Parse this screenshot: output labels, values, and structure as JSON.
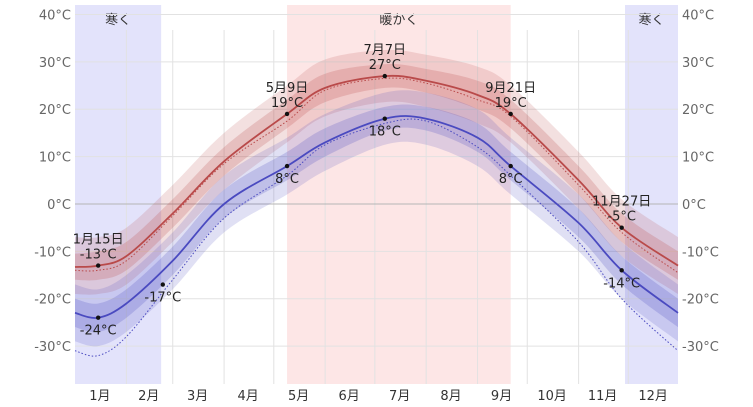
{
  "chart_data": {
    "type": "line",
    "title": "",
    "xlabel": "",
    "ylabel": "",
    "x_unit": "day_of_year",
    "xlim": [
      1,
      365
    ],
    "ylim": [
      -38,
      42
    ],
    "yticks": [
      -30,
      -20,
      -10,
      0,
      10,
      20,
      30,
      40
    ],
    "ytick_labels": [
      "-30°C",
      "-20°C",
      "-10°C",
      "0°C",
      "10°C",
      "20°C",
      "30°C",
      "40°C"
    ],
    "months": [
      {
        "label": "1月",
        "start": 1,
        "end": 31
      },
      {
        "label": "2月",
        "start": 32,
        "end": 59
      },
      {
        "label": "3月",
        "start": 60,
        "end": 90
      },
      {
        "label": "4月",
        "start": 91,
        "end": 120
      },
      {
        "label": "5月",
        "start": 121,
        "end": 151
      },
      {
        "label": "6月",
        "start": 152,
        "end": 181
      },
      {
        "label": "7月",
        "start": 182,
        "end": 212
      },
      {
        "label": "8月",
        "start": 213,
        "end": 243
      },
      {
        "label": "9月",
        "start": 244,
        "end": 273
      },
      {
        "label": "10月",
        "start": 274,
        "end": 304
      },
      {
        "label": "11月",
        "start": 305,
        "end": 334
      },
      {
        "label": "12月",
        "start": 335,
        "end": 365
      }
    ],
    "seasons": [
      {
        "label": "寒く",
        "start": 1,
        "end": 53,
        "color": "#e3e3fb"
      },
      {
        "label": "暖かく",
        "start": 129,
        "end": 264,
        "color": "#fde6e6"
      },
      {
        "label": "寒く",
        "start": 333,
        "end": 365,
        "color": "#e3e3fb"
      }
    ],
    "x": [
      1,
      15,
      32,
      60,
      91,
      129,
      152,
      188,
      213,
      244,
      264,
      305,
      331,
      365
    ],
    "series": [
      {
        "color": "#b94a4a",
        "values": [
          -13.3,
          -13,
          -11,
          -2,
          9,
          19,
          24.5,
          27,
          26,
          23,
          19,
          5,
          -5,
          -13
        ],
        "band_inner": [
          [
            -16,
            -10.5
          ],
          [
            -16,
            -10
          ],
          [
            -14,
            -8
          ],
          [
            -5,
            1
          ],
          [
            6,
            12
          ],
          [
            16,
            22
          ],
          [
            21.5,
            27.5
          ],
          [
            24.5,
            29.5
          ],
          [
            23.5,
            28.5
          ],
          [
            20,
            26
          ],
          [
            16,
            22
          ],
          [
            2,
            8
          ],
          [
            -8,
            -2
          ],
          [
            -16,
            -10
          ]
        ],
        "band_outer": [
          [
            -19,
            -7
          ],
          [
            -19,
            -7
          ],
          [
            -17,
            -5
          ],
          [
            -8,
            4
          ],
          [
            3,
            15
          ],
          [
            13,
            25
          ],
          [
            18.5,
            30.5
          ],
          [
            21.5,
            32.5
          ],
          [
            20.5,
            31.5
          ],
          [
            17,
            29
          ],
          [
            13,
            25
          ],
          [
            -1,
            11
          ],
          [
            -11,
            1
          ],
          [
            -19,
            -7
          ]
        ],
        "avg_dotted": [
          -14,
          -14,
          -12,
          -2.5,
          8.5,
          17.5,
          24,
          26.5,
          25.5,
          22,
          18.5,
          4,
          -6,
          -14.5
        ]
      },
      {
        "color": "#4a4ac0",
        "values": [
          -23,
          -24,
          -21,
          -12,
          0,
          8,
          13,
          18,
          18,
          14,
          8,
          -4,
          -14,
          -23
        ],
        "band_inner": [
          [
            -26,
            -20
          ],
          [
            -27,
            -21
          ],
          [
            -24,
            -18
          ],
          [
            -15,
            -9
          ],
          [
            -3,
            3
          ],
          [
            5,
            11
          ],
          [
            10,
            16
          ],
          [
            15.5,
            20.5
          ],
          [
            15.5,
            20.5
          ],
          [
            11,
            17
          ],
          [
            5,
            11
          ],
          [
            -7,
            -1
          ],
          [
            -17,
            -11
          ],
          [
            -26,
            -20
          ]
        ],
        "band_outer": [
          [
            -29,
            -17
          ],
          [
            -30,
            -18
          ],
          [
            -27,
            -15
          ],
          [
            -18,
            -6
          ],
          [
            -6,
            6
          ],
          [
            2,
            14
          ],
          [
            7,
            19
          ],
          [
            12.5,
            23.5
          ],
          [
            12.5,
            23.5
          ],
          [
            8,
            20
          ],
          [
            2,
            14
          ],
          [
            -10,
            2
          ],
          [
            -20,
            -8
          ],
          [
            -29,
            -17
          ]
        ],
        "avg_dotted": [
          -31,
          -32,
          -28,
          -16,
          -3,
          6,
          12.5,
          17,
          17.5,
          12,
          6,
          -8,
          -20,
          -31
        ]
      }
    ],
    "annotations": [
      {
        "day": 15,
        "value": -13,
        "date": "1月15日",
        "label": "-13°C",
        "position": "above"
      },
      {
        "day": 15,
        "value": -24,
        "date": "",
        "label": "-24°C",
        "position": "below"
      },
      {
        "day": 54,
        "value": -17,
        "date": "",
        "label": "-17°C",
        "position": "below"
      },
      {
        "day": 129,
        "value": 19,
        "date": "5月9日",
        "label": "19°C",
        "position": "above"
      },
      {
        "day": 129,
        "value": 8,
        "date": "",
        "label": "8°C",
        "position": "below"
      },
      {
        "day": 188,
        "value": 27,
        "date": "7月7日",
        "label": "27°C",
        "position": "above"
      },
      {
        "day": 188,
        "value": 18,
        "date": "",
        "label": "18°C",
        "position": "below"
      },
      {
        "day": 264,
        "value": 19,
        "date": "9月21日",
        "label": "19°C",
        "position": "above"
      },
      {
        "day": 264,
        "value": 8,
        "date": "",
        "label": "8°C",
        "position": "below"
      },
      {
        "day": 331,
        "value": -5,
        "date": "11月27日",
        "label": "-5°C",
        "position": "above"
      },
      {
        "day": 331,
        "value": -14,
        "date": "",
        "label": "-14°C",
        "position": "below"
      }
    ],
    "grid": true
  }
}
